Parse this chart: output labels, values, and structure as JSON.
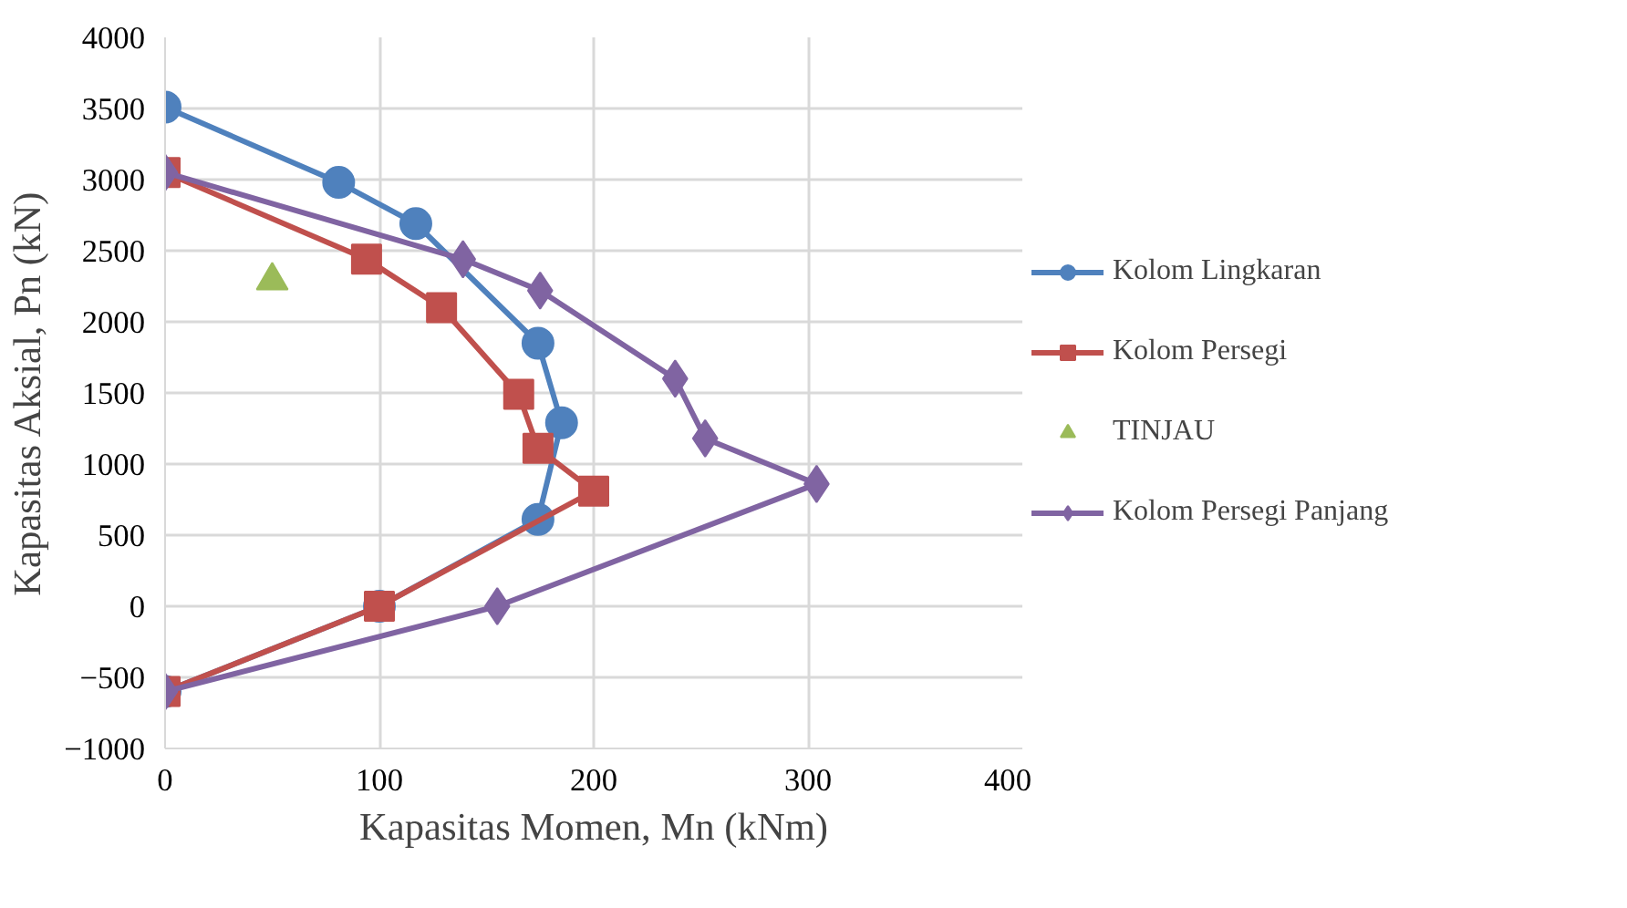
{
  "chart_data": {
    "type": "line",
    "xlabel": "Kapasitas Momen, Mn (kNm)",
    "ylabel": "Kapasitas Aksial, Pn (kN)",
    "xlim": [
      0,
      400
    ],
    "xticks": [
      0,
      100,
      200,
      300,
      400
    ],
    "ylim": [
      -1000,
      4000
    ],
    "yticks": [
      -1000,
      -500,
      0,
      500,
      1000,
      1500,
      2000,
      2500,
      3000,
      3500,
      4000
    ],
    "grid": true,
    "legend": "right",
    "series": [
      {
        "name": "Kolom Lingkaran",
        "color": "#4f81bd",
        "marker": "circle",
        "x": [
          0,
          81,
          117,
          174,
          185,
          174,
          100,
          0
        ],
        "values": [
          3510,
          2980,
          2690,
          1850,
          1290,
          610,
          0,
          -600
        ]
      },
      {
        "name": "Kolom Persegi",
        "color": "#c0504d",
        "marker": "square",
        "x": [
          0,
          94,
          129,
          165,
          174,
          200,
          100,
          0
        ],
        "values": [
          3050,
          2440,
          2100,
          1490,
          1110,
          810,
          0,
          -600
        ]
      },
      {
        "name": "TINJAU",
        "color": "#9bbb59",
        "marker": "triangle",
        "type": "scatter",
        "x": [
          50
        ],
        "values": [
          2290
        ]
      },
      {
        "name": "Kolom Persegi Panjang",
        "color": "#8064a2",
        "marker": "diamond",
        "x": [
          0,
          139,
          175,
          238,
          252,
          304,
          155,
          0
        ],
        "values": [
          3050,
          2440,
          2220,
          1600,
          1180,
          860,
          0,
          -600
        ]
      }
    ]
  }
}
